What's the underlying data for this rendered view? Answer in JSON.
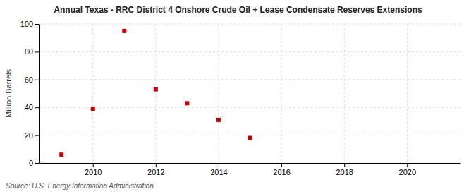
{
  "chart_data": {
    "type": "scatter",
    "title": "Annual Texas - RRC District 4 Onshore Crude Oil + Lease Condensate Reserves Extensions",
    "y_label": "Million Barrels",
    "source": "Source: U.S. Energy Information Administration",
    "x": [
      2009,
      2010,
      2011,
      2012,
      2013,
      2014,
      2015
    ],
    "values": [
      6.0,
      39.0,
      95.0,
      53.0,
      43.0,
      31.0,
      18.0
    ],
    "color": "#cc0000",
    "marker": "square",
    "xlim": [
      2008.3,
      2021.7
    ],
    "ylim": [
      0,
      100
    ],
    "xticks": [
      2010,
      2012,
      2014,
      2016,
      2018,
      2020
    ],
    "yticks": [
      0,
      20,
      40,
      60,
      80,
      100
    ],
    "grid": true
  }
}
